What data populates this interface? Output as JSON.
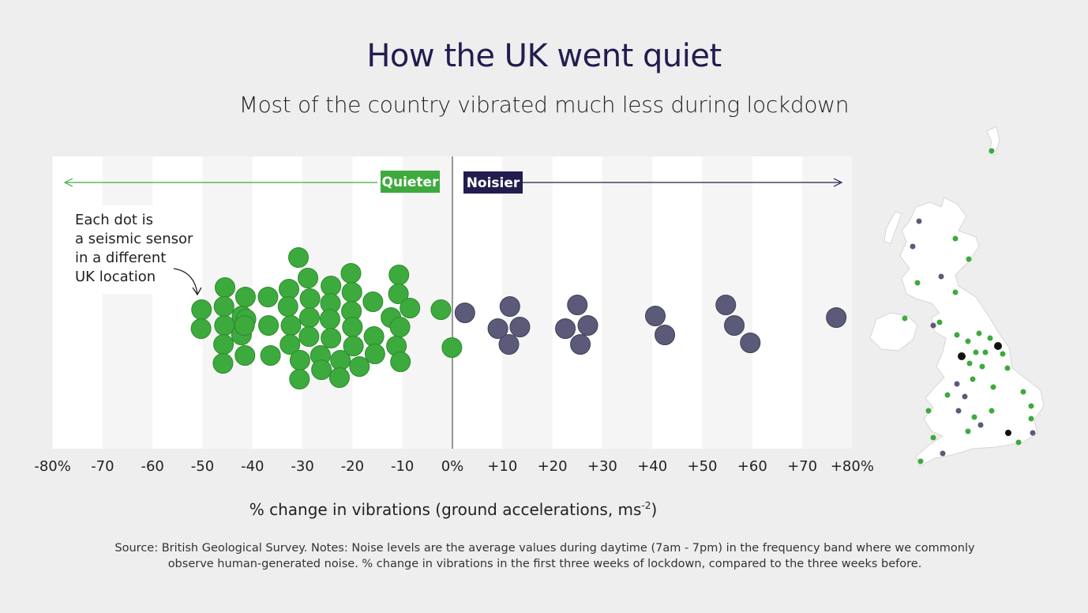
{
  "title": "How the UK went quiet",
  "subtitle": "Most of the country vibrated much less during lockdown",
  "source": "Source: British Geological Survey. Notes: Noise levels are the average values during daytime (7am - 7pm) in the frequency band where we commonly observe human-generated noise. % change in vibrations in the first three weeks of lockdown, compared to the three weeks before.",
  "colors": {
    "quieter": "#3daa3d",
    "noisier": "#5b5a78",
    "dark": "#221d4f",
    "map_land": "#ffffff"
  },
  "annotation": [
    "Each dot is",
    "a seismic sensor",
    "in a different",
    "UK location"
  ],
  "chart_data": {
    "type": "scatter",
    "xlim": [
      -80,
      80
    ],
    "xticks": [
      -80,
      -70,
      -60,
      -50,
      -40,
      -30,
      -20,
      -10,
      0,
      10,
      20,
      30,
      40,
      50,
      60,
      70,
      80
    ],
    "xtick_labels": [
      "-80%",
      "-70",
      "-60",
      "-50",
      "-40",
      "-30",
      "-20",
      "-10",
      "0%",
      "+10",
      "+20",
      "+30",
      "+40",
      "+50",
      "+60",
      "+70",
      "+80%"
    ],
    "xlabel": "% change in vibrations (ground accelerations, ms",
    "xlabel_sup": "-2",
    "xlabel_close": ")",
    "quieter_label": "Quieter",
    "noisier_label": "Noisier",
    "points": [
      {
        "x": -50.2,
        "y": 0.4
      },
      {
        "x": -50.3,
        "y": -0.8
      },
      {
        "x": -45.5,
        "y": 1.8
      },
      {
        "x": -45.7,
        "y": 0.6
      },
      {
        "x": -45.6,
        "y": -0.6
      },
      {
        "x": -45.8,
        "y": -1.8
      },
      {
        "x": -45.9,
        "y": -3.0
      },
      {
        "x": -42.1,
        "y": 0.0
      },
      {
        "x": -42.2,
        "y": -1.2
      },
      {
        "x": -41.4,
        "y": 1.2
      },
      {
        "x": -41.3,
        "y": -0.2
      },
      {
        "x": -41.6,
        "y": -0.6
      },
      {
        "x": -41.5,
        "y": -2.5
      },
      {
        "x": -36.9,
        "y": 1.2
      },
      {
        "x": -36.8,
        "y": -0.6
      },
      {
        "x": -36.4,
        "y": -2.5
      },
      {
        "x": -32.7,
        "y": 1.7
      },
      {
        "x": -32.9,
        "y": 0.6
      },
      {
        "x": -32.3,
        "y": -0.6
      },
      {
        "x": -32.5,
        "y": -1.8
      },
      {
        "x": -30.8,
        "y": 3.7
      },
      {
        "x": -30.5,
        "y": -2.8
      },
      {
        "x": -30.6,
        "y": -4.0
      },
      {
        "x": -28.9,
        "y": 2.4
      },
      {
        "x": -28.5,
        "y": 1.1
      },
      {
        "x": -28.6,
        "y": -0.1
      },
      {
        "x": -28.7,
        "y": -1.3
      },
      {
        "x": -26.4,
        "y": -2.5
      },
      {
        "x": -26.2,
        "y": -3.4
      },
      {
        "x": -24.3,
        "y": 1.9
      },
      {
        "x": -24.4,
        "y": 0.8
      },
      {
        "x": -24.5,
        "y": -0.2
      },
      {
        "x": -24.3,
        "y": -1.4
      },
      {
        "x": -22.4,
        "y": -2.8
      },
      {
        "x": -22.6,
        "y": -3.9
      },
      {
        "x": -20.3,
        "y": 2.7
      },
      {
        "x": -20.1,
        "y": 1.5
      },
      {
        "x": -20.2,
        "y": 0.3
      },
      {
        "x": -20.0,
        "y": -0.7
      },
      {
        "x": -19.8,
        "y": -1.9
      },
      {
        "x": -18.6,
        "y": -3.2
      },
      {
        "x": -15.9,
        "y": 0.9
      },
      {
        "x": -15.7,
        "y": -1.3
      },
      {
        "x": -15.5,
        "y": -2.4
      },
      {
        "x": -12.3,
        "y": -0.1
      },
      {
        "x": -11.2,
        "y": -1.9
      },
      {
        "x": -10.7,
        "y": 2.6
      },
      {
        "x": -10.8,
        "y": 1.4
      },
      {
        "x": -10.5,
        "y": -0.7
      },
      {
        "x": -10.4,
        "y": -2.9
      },
      {
        "x": -8.5,
        "y": 0.5
      },
      {
        "x": -2.3,
        "y": 0.4
      },
      {
        "x": -0.1,
        "y": -2.0
      },
      {
        "x": 2.5,
        "y": 0.2
      },
      {
        "x": 9.1,
        "y": -0.8
      },
      {
        "x": 11.5,
        "y": 0.6
      },
      {
        "x": 11.3,
        "y": -1.8
      },
      {
        "x": 13.5,
        "y": -0.7
      },
      {
        "x": 22.6,
        "y": -0.8
      },
      {
        "x": 25.0,
        "y": 0.7
      },
      {
        "x": 25.6,
        "y": -1.8
      },
      {
        "x": 27.1,
        "y": -0.6
      },
      {
        "x": 40.6,
        "y": 0.0
      },
      {
        "x": 42.5,
        "y": -1.2
      },
      {
        "x": 54.7,
        "y": 0.7
      },
      {
        "x": 56.4,
        "y": -0.6
      },
      {
        "x": 59.6,
        "y": -1.7
      },
      {
        "x": 76.8,
        "y": -0.1
      }
    ]
  }
}
